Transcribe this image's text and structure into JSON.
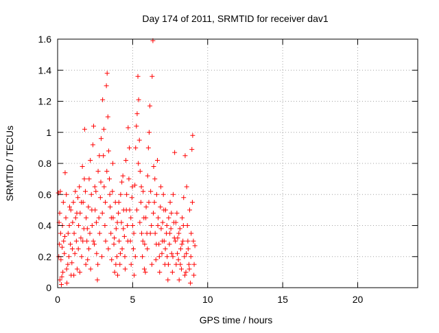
{
  "chart_data": {
    "type": "scatter",
    "title": "Day 174 of 2011, SRMTID for receiver dav1",
    "xlabel": "GPS time / hours",
    "ylabel": "SRMTID / TECUs",
    "xlim": [
      0,
      24
    ],
    "ylim": [
      0,
      1.6
    ],
    "xticks": [
      0,
      5,
      10,
      15,
      20
    ],
    "yticks": [
      0,
      0.2,
      0.4,
      0.6,
      0.8,
      1.0,
      1.2,
      1.4,
      1.6
    ],
    "xtick_labels": [
      "0",
      "5",
      "10",
      "15",
      "20"
    ],
    "ytick_labels": [
      "0",
      "0.2",
      "0.4",
      "0.6",
      "0.8",
      "1",
      "1.2",
      "1.4",
      "1.6"
    ],
    "grid": true,
    "marker": "+",
    "marker_color": "#ff0000",
    "series": [
      {
        "points": [
          [
            0.05,
            0.61
          ],
          [
            0.1,
            0.42
          ],
          [
            0.12,
            0.28
          ],
          [
            0.15,
            0.05
          ],
          [
            0.18,
            0.62
          ],
          [
            0.2,
            0.35
          ],
          [
            0.22,
            0.18
          ],
          [
            0.25,
            0.02
          ],
          [
            0.3,
            0.26
          ],
          [
            0.32,
            0.4
          ],
          [
            0.35,
            0.1
          ],
          [
            0.4,
            0.3
          ],
          [
            0.45,
            0.22
          ],
          [
            0.5,
            0.74
          ],
          [
            0.55,
            0.45
          ],
          [
            0.6,
            0.12
          ],
          [
            0.62,
            0.03
          ],
          [
            0.7,
            0.35
          ],
          [
            0.75,
            0.2
          ],
          [
            0.8,
            0.52
          ],
          [
            0.85,
            0.28
          ],
          [
            0.9,
            0.08
          ],
          [
            0.95,
            0.16
          ],
          [
            1.0,
            0.42
          ],
          [
            1.05,
            0.55
          ],
          [
            1.1,
            0.35
          ],
          [
            1.15,
            0.22
          ],
          [
            1.2,
            0.45
          ],
          [
            1.25,
            0.3
          ],
          [
            1.3,
            0.12
          ],
          [
            1.35,
            0.58
          ],
          [
            1.4,
            0.4
          ],
          [
            1.45,
            0.65
          ],
          [
            1.5,
            0.48
          ],
          [
            1.55,
            0.32
          ],
          [
            1.6,
            0.2
          ],
          [
            1.65,
            0.78
          ],
          [
            1.7,
            0.55
          ],
          [
            1.75,
            0.38
          ],
          [
            1.8,
            1.02
          ],
          [
            1.85,
            0.62
          ],
          [
            1.9,
            0.45
          ],
          [
            1.95,
            0.3
          ],
          [
            2.0,
            0.18
          ],
          [
            2.05,
            0.52
          ],
          [
            2.1,
            0.7
          ],
          [
            2.15,
            0.35
          ],
          [
            2.2,
            0.12
          ],
          [
            2.25,
            0.6
          ],
          [
            2.3,
            0.4
          ],
          [
            2.35,
            0.92
          ],
          [
            2.4,
            1.04
          ],
          [
            2.45,
            0.28
          ],
          [
            2.5,
            0.5
          ],
          [
            2.55,
            0.62
          ],
          [
            2.6,
            0.22
          ],
          [
            2.65,
            0.05
          ],
          [
            2.7,
            0.75
          ],
          [
            2.75,
            0.45
          ],
          [
            2.8,
            0.35
          ],
          [
            2.85,
            0.58
          ],
          [
            2.9,
            0.96
          ],
          [
            2.95,
            0.2
          ],
          [
            3.0,
            1.21
          ],
          [
            3.05,
            0.85
          ],
          [
            3.1,
            0.65
          ],
          [
            3.15,
            0.4
          ],
          [
            3.2,
            0.3
          ],
          [
            3.25,
            1.3
          ],
          [
            3.3,
            1.38
          ],
          [
            3.35,
            1.1
          ],
          [
            3.4,
            0.88
          ],
          [
            3.45,
            0.7
          ],
          [
            3.5,
            0.52
          ],
          [
            3.55,
            0.35
          ],
          [
            3.6,
            0.18
          ],
          [
            3.65,
            0.62
          ],
          [
            3.7,
            0.45
          ],
          [
            3.75,
            0.28
          ],
          [
            3.8,
            0.1
          ],
          [
            3.85,
            0.55
          ],
          [
            3.9,
            0.38
          ],
          [
            3.95,
            0.2
          ],
          [
            4.0,
            0.08
          ],
          [
            4.05,
            0.48
          ],
          [
            4.1,
            0.3
          ],
          [
            4.15,
            0.15
          ],
          [
            4.2,
            0.6
          ],
          [
            4.25,
            0.42
          ],
          [
            4.3,
            0.25
          ],
          [
            4.35,
            0.72
          ],
          [
            4.4,
            0.5
          ],
          [
            4.45,
            0.33
          ],
          [
            4.5,
            0.12
          ],
          [
            4.55,
            0.82
          ],
          [
            4.6,
            0.6
          ],
          [
            4.65,
            0.4
          ],
          [
            4.7,
            1.03
          ],
          [
            4.75,
            0.7
          ],
          [
            4.8,
            0.5
          ],
          [
            4.85,
            0.3
          ],
          [
            4.9,
            0.15
          ],
          [
            4.95,
            0.58
          ],
          [
            5.0,
            0.4
          ],
          [
            5.05,
            0.25
          ],
          [
            5.1,
            0.08
          ],
          [
            5.15,
            0.66
          ],
          [
            5.2,
            0.9
          ],
          [
            5.25,
            1.04
          ],
          [
            5.3,
            1.12
          ],
          [
            5.35,
            1.36
          ],
          [
            5.4,
            1.21
          ],
          [
            5.45,
            0.95
          ],
          [
            5.5,
            0.75
          ],
          [
            5.55,
            0.55
          ],
          [
            5.6,
            0.35
          ],
          [
            5.65,
            0.2
          ],
          [
            5.7,
            0.62
          ],
          [
            5.75,
            0.45
          ],
          [
            5.8,
            0.28
          ],
          [
            5.85,
            0.1
          ],
          [
            5.9,
            0.52
          ],
          [
            5.95,
            0.35
          ],
          [
            6.0,
            0.72
          ],
          [
            6.05,
            0.9
          ],
          [
            6.1,
            1.0
          ],
          [
            6.15,
            1.17
          ],
          [
            6.2,
            0.62
          ],
          [
            6.25,
            0.4
          ],
          [
            6.3,
            1.36
          ],
          [
            6.35,
            1.59
          ],
          [
            6.4,
            0.78
          ],
          [
            6.45,
            0.55
          ],
          [
            6.5,
            0.35
          ],
          [
            6.55,
            0.18
          ],
          [
            6.6,
            0.6
          ],
          [
            6.65,
            0.82
          ],
          [
            6.7,
            0.45
          ],
          [
            6.75,
            0.28
          ],
          [
            6.8,
            0.1
          ],
          [
            6.85,
            0.52
          ],
          [
            6.9,
            0.38
          ],
          [
            6.95,
            0.22
          ],
          [
            7.0,
            0.42
          ],
          [
            7.05,
            0.6
          ],
          [
            7.1,
            0.3
          ],
          [
            7.15,
            0.15
          ],
          [
            7.2,
            0.5
          ],
          [
            7.25,
            0.35
          ],
          [
            7.3,
            0.2
          ],
          [
            7.35,
            0.05
          ],
          [
            7.4,
            0.45
          ],
          [
            7.45,
            0.28
          ],
          [
            7.5,
            0.55
          ],
          [
            7.55,
            0.38
          ],
          [
            7.6,
            0.22
          ],
          [
            7.65,
            0.1
          ],
          [
            7.7,
            0.6
          ],
          [
            7.75,
            0.42
          ],
          [
            7.8,
            0.87
          ],
          [
            7.85,
            0.3
          ],
          [
            7.9,
            0.15
          ],
          [
            7.95,
            0.48
          ],
          [
            8.0,
            0.32
          ],
          [
            8.05,
            0.18
          ],
          [
            8.1,
            0.05
          ],
          [
            8.15,
            0.38
          ],
          [
            8.2,
            0.25
          ],
          [
            8.25,
            0.12
          ],
          [
            8.3,
            0.45
          ],
          [
            8.35,
            0.3
          ],
          [
            8.4,
            0.58
          ],
          [
            8.45,
            0.2
          ],
          [
            8.5,
            0.85
          ],
          [
            8.55,
            0.1
          ],
          [
            8.6,
            0.65
          ],
          [
            8.65,
            0.4
          ],
          [
            8.7,
            0.25
          ],
          [
            8.75,
            0.15
          ],
          [
            8.8,
            0.5
          ],
          [
            8.85,
            0.03
          ],
          [
            8.9,
            0.35
          ],
          [
            8.95,
            0.89
          ],
          [
            9.0,
            0.98
          ],
          [
            9.05,
            0.3
          ],
          [
            9.1,
            0.15
          ],
          [
            9.15,
            0.27
          ],
          [
            0.08,
            0.2
          ],
          [
            0.14,
            0.48
          ],
          [
            0.28,
            0.07
          ],
          [
            0.38,
            0.55
          ],
          [
            0.48,
            0.33
          ],
          [
            0.58,
            0.6
          ],
          [
            0.68,
            0.15
          ],
          [
            0.78,
            0.4
          ],
          [
            0.88,
            0.5
          ],
          [
            0.98,
            0.25
          ],
          [
            1.08,
            0.08
          ],
          [
            1.18,
            0.62
          ],
          [
            1.28,
            0.48
          ],
          [
            1.38,
            0.25
          ],
          [
            1.48,
            0.1
          ],
          [
            1.58,
            0.55
          ],
          [
            1.68,
            0.3
          ],
          [
            1.78,
            0.7
          ],
          [
            1.88,
            0.15
          ],
          [
            1.98,
            0.38
          ],
          [
            2.08,
            0.25
          ],
          [
            2.18,
            0.82
          ],
          [
            2.28,
            0.5
          ],
          [
            2.38,
            0.3
          ],
          [
            2.48,
            0.65
          ],
          [
            2.58,
            0.42
          ],
          [
            2.68,
            0.15
          ],
          [
            2.78,
            0.85
          ],
          [
            2.88,
            0.68
          ],
          [
            2.98,
            0.48
          ],
          [
            3.08,
            1.02
          ],
          [
            3.18,
            0.55
          ],
          [
            3.28,
            0.75
          ],
          [
            3.38,
            0.25
          ],
          [
            3.48,
            0.6
          ],
          [
            3.58,
            0.45
          ],
          [
            3.68,
            0.8
          ],
          [
            3.78,
            0.32
          ],
          [
            3.88,
            0.15
          ],
          [
            3.98,
            0.42
          ],
          [
            4.08,
            0.55
          ],
          [
            4.18,
            0.22
          ],
          [
            4.28,
            0.68
          ],
          [
            4.38,
            0.38
          ],
          [
            4.48,
            0.2
          ],
          [
            4.58,
            0.5
          ],
          [
            4.68,
            0.3
          ],
          [
            4.78,
            0.9
          ],
          [
            4.88,
            0.45
          ],
          [
            4.98,
            0.65
          ],
          [
            5.08,
            0.35
          ],
          [
            5.18,
            0.2
          ],
          [
            5.28,
            0.5
          ],
          [
            5.38,
            0.8
          ],
          [
            5.48,
            0.42
          ],
          [
            5.58,
            0.65
          ],
          [
            5.68,
            0.3
          ],
          [
            5.78,
            0.12
          ],
          [
            5.88,
            0.45
          ],
          [
            5.98,
            0.25
          ],
          [
            6.08,
            0.55
          ],
          [
            6.18,
            0.35
          ],
          [
            6.28,
            0.15
          ],
          [
            6.38,
            0.48
          ],
          [
            6.48,
            0.7
          ],
          [
            6.58,
            0.28
          ],
          [
            6.68,
            0.4
          ],
          [
            6.78,
            0.2
          ],
          [
            6.88,
            0.65
          ],
          [
            6.98,
            0.3
          ],
          [
            7.08,
            0.5
          ],
          [
            7.18,
            0.25
          ],
          [
            7.28,
            0.4
          ],
          [
            7.38,
            0.15
          ],
          [
            7.48,
            0.35
          ],
          [
            7.58,
            0.48
          ],
          [
            7.68,
            0.2
          ],
          [
            7.78,
            0.32
          ],
          [
            7.88,
            0.42
          ],
          [
            7.98,
            0.22
          ],
          [
            8.08,
            0.35
          ],
          [
            8.18,
            0.15
          ],
          [
            8.28,
            0.28
          ],
          [
            8.38,
            0.4
          ],
          [
            8.48,
            0.08
          ],
          [
            8.58,
            0.22
          ],
          [
            8.68,
            0.3
          ],
          [
            8.78,
            0.12
          ],
          [
            8.88,
            0.2
          ],
          [
            8.98,
            0.55
          ],
          [
            9.08,
            0.08
          ]
        ]
      }
    ]
  }
}
